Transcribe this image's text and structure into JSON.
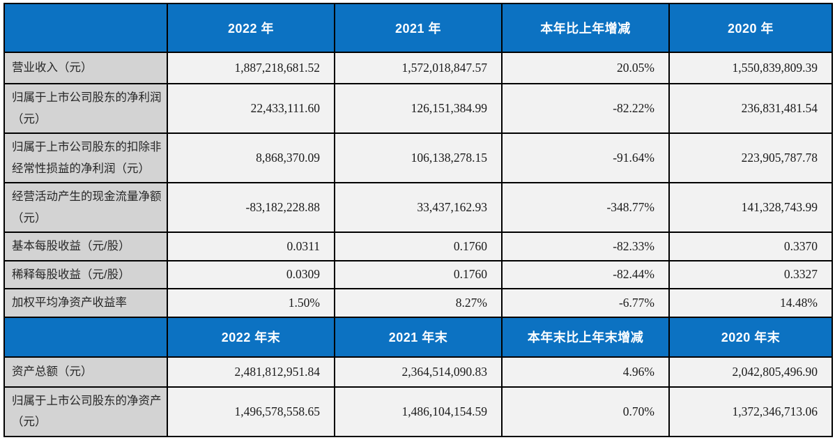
{
  "document": {
    "type": "financial-summary-table",
    "language": "zh-CN"
  },
  "colors": {
    "header_bg": "#0C72C2",
    "header_text": "#FFFFFF",
    "label_bg": "#D3D3D3",
    "value_bg": "#F2F2F2",
    "border": "#000000"
  },
  "sections": [
    {
      "header": {
        "corner": "",
        "cols": [
          "2022 年",
          "2021 年",
          "本年比上年增减",
          "2020 年"
        ]
      },
      "rows": [
        {
          "label": "营业收入（元）",
          "values": [
            "1,887,218,681.52",
            "1,572,018,847.57",
            "20.05%",
            "1,550,839,809.39"
          ]
        },
        {
          "label": "归属于上市公司股东的净利润（元）",
          "values": [
            "22,433,111.60",
            "126,151,384.99",
            "-82.22%",
            "236,831,481.54"
          ]
        },
        {
          "label": "归属于上市公司股东的扣除非经常性损益的净利润（元）",
          "values": [
            "8,868,370.09",
            "106,138,278.15",
            "-91.64%",
            "223,905,787.78"
          ]
        },
        {
          "label": "经营活动产生的现金流量净额（元）",
          "values": [
            "-83,182,228.88",
            "33,437,162.93",
            "-348.77%",
            "141,328,743.99"
          ]
        },
        {
          "label": "基本每股收益（元/股）",
          "values": [
            "0.0311",
            "0.1760",
            "-82.33%",
            "0.3370"
          ]
        },
        {
          "label": "稀释每股收益（元/股）",
          "values": [
            "0.0309",
            "0.1760",
            "-82.44%",
            "0.3327"
          ]
        },
        {
          "label": "加权平均净资产收益率",
          "values": [
            "1.50%",
            "8.27%",
            "-6.77%",
            "14.48%"
          ]
        }
      ]
    },
    {
      "header": {
        "corner": "",
        "cols": [
          "2022 年末",
          "2021 年末",
          "本年末比上年末增减",
          "2020 年末"
        ]
      },
      "rows": [
        {
          "label": "资产总额（元）",
          "values": [
            "2,481,812,951.84",
            "2,364,514,090.83",
            "4.96%",
            "2,042,805,496.90"
          ]
        },
        {
          "label": "归属于上市公司股东的净资产（元）",
          "values": [
            "1,496,578,558.65",
            "1,486,104,154.59",
            "0.70%",
            "1,372,346,713.06"
          ]
        }
      ]
    }
  ]
}
